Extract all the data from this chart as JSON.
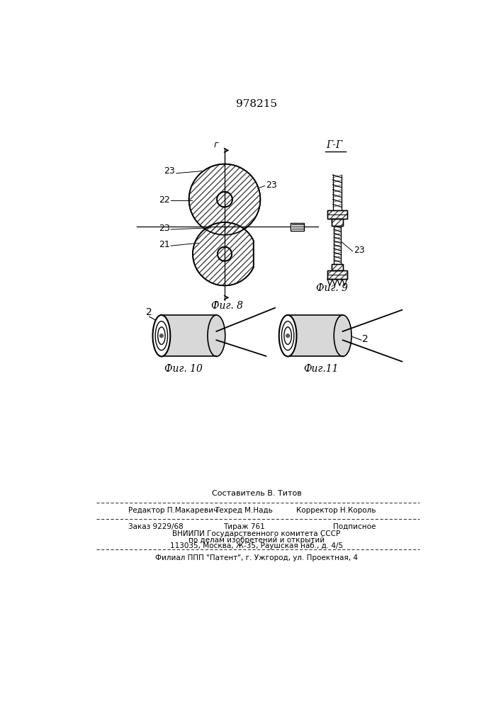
{
  "title": "978215",
  "bg_color": "#ffffff",
  "fig8_label": "Фиг. 8",
  "fig9_label": "Фиг. 9",
  "fig10_label": "Фиг. 10",
  "fig11_label": "Фиг.11",
  "section_label": "Г-Г",
  "footer_line1": "Составитель В. Титов",
  "footer_line2_left": "Редактор П.Макаревич",
  "footer_line2_mid": "Техред М.Надь",
  "footer_line2_right": "Корректор Н.Король",
  "footer_line3_left": "Заказ 9229/68",
  "footer_line3_mid": "Тираж 761",
  "footer_line3_right": "Подписное",
  "footer_line4": "ВНИИПИ Государственного комитета СССР",
  "footer_line5": "по делам изобретений и открытий",
  "footer_line6": "113035, Москва, Ж-35, Раушская наб., д. 4/5",
  "footer_line7": "Филиал ППП \"Патент\", г. Ужгород, ул. Проектная, 4",
  "line_color": "#000000"
}
